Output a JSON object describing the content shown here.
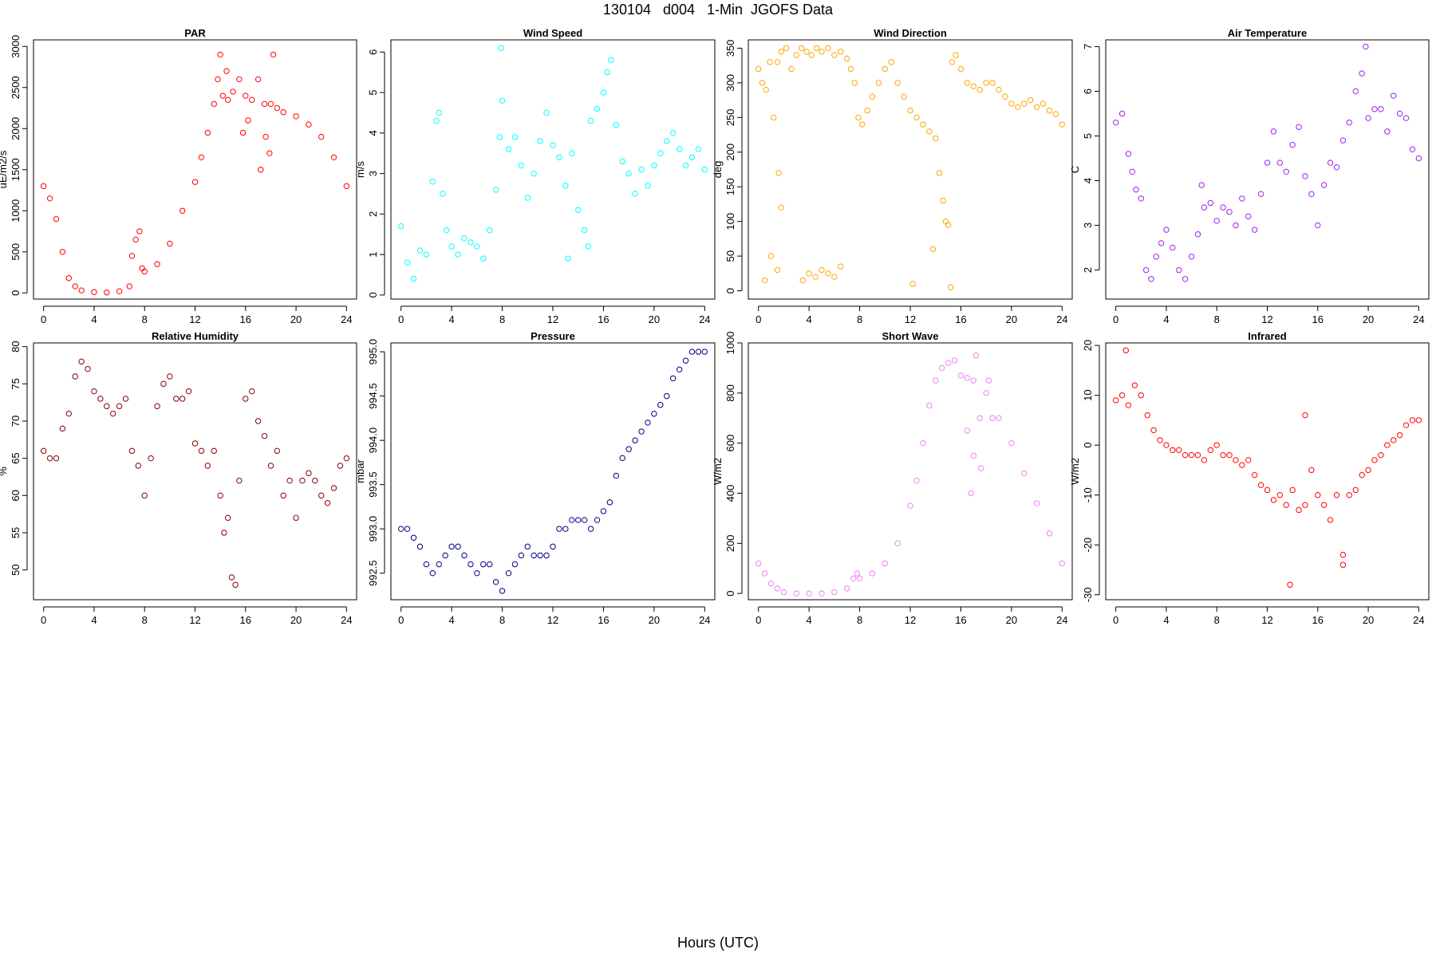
{
  "page": {
    "title": "130104   d004   1-Min  JGOFS Data",
    "xlabel": "Hours (UTC)"
  },
  "chart_data": [
    {
      "type": "scatter",
      "title": "PAR",
      "ylabel": "uE/m2/s",
      "color": "#ff0000",
      "xlim": [
        -0.8,
        24.8
      ],
      "ylim": [
        -75,
        3080
      ],
      "xticks": [
        0,
        4,
        8,
        12,
        16,
        20,
        24
      ],
      "yticks": [
        0,
        500,
        1000,
        1500,
        2000,
        2500,
        3000
      ],
      "x": [
        0,
        0.5,
        1,
        1.5,
        2,
        2.5,
        3,
        4,
        5,
        6,
        6.8,
        7,
        7.3,
        7.6,
        7.8,
        8,
        9,
        10,
        11,
        12,
        12.5,
        13,
        13.5,
        13.8,
        14.2,
        14.6,
        15,
        15.5,
        16,
        16.5,
        17,
        17.5,
        18,
        18.5,
        19,
        20,
        21,
        22,
        23,
        24,
        14.0,
        14.5,
        16.2,
        17.2,
        17.6,
        17.9,
        18.2,
        15.8
      ],
      "y": [
        1300,
        1150,
        900,
        500,
        180,
        80,
        30,
        10,
        5,
        20,
        80,
        450,
        650,
        750,
        300,
        260,
        350,
        600,
        1000,
        1350,
        1650,
        1950,
        2300,
        2600,
        2400,
        2350,
        2450,
        2600,
        2400,
        2350,
        2600,
        2300,
        2300,
        2250,
        2200,
        2150,
        2050,
        1900,
        1650,
        1300,
        2900,
        2700,
        2100,
        1500,
        1900,
        1700,
        2900,
        1950
      ]
    },
    {
      "type": "scatter",
      "title": "Wind Speed",
      "ylabel": "m/s",
      "color": "#00ffff",
      "xlim": [
        -0.8,
        24.8
      ],
      "ylim": [
        -0.1,
        6.3
      ],
      "xticks": [
        0,
        4,
        8,
        12,
        16,
        20,
        24
      ],
      "yticks": [
        0,
        1,
        2,
        3,
        4,
        5,
        6
      ],
      "x": [
        0,
        0.5,
        1,
        1.5,
        2,
        2.5,
        2.8,
        3,
        3.3,
        3.6,
        4,
        4.5,
        5,
        5.5,
        6,
        6.5,
        7,
        7.5,
        7.8,
        8,
        8.5,
        9,
        9.5,
        10,
        10.5,
        11,
        11.5,
        12,
        12.5,
        13,
        13.5,
        14,
        14.5,
        15,
        15.5,
        16,
        16.3,
        16.6,
        17,
        17.5,
        18,
        18.5,
        19,
        19.5,
        20,
        20.5,
        21,
        21.5,
        22,
        22.5,
        23,
        23.5,
        24,
        7.9,
        13.2,
        14.8
      ],
      "y": [
        1.7,
        0.8,
        0.4,
        1.1,
        1.0,
        2.8,
        4.3,
        4.5,
        2.5,
        1.6,
        1.2,
        1.0,
        1.4,
        1.3,
        1.2,
        0.9,
        1.6,
        2.6,
        3.9,
        4.8,
        3.6,
        3.9,
        3.2,
        2.4,
        3.0,
        3.8,
        4.5,
        3.7,
        3.4,
        2.7,
        3.5,
        2.1,
        1.6,
        4.3,
        4.6,
        5.0,
        5.5,
        5.8,
        4.2,
        3.3,
        3.0,
        2.5,
        3.1,
        2.7,
        3.2,
        3.5,
        3.8,
        4.0,
        3.6,
        3.2,
        3.4,
        3.6,
        3.1,
        6.1,
        0.9,
        1.2
      ]
    },
    {
      "type": "scatter",
      "title": "Wind Direction",
      "ylabel": "deg",
      "color": "#ffa500",
      "xlim": [
        -0.8,
        24.8
      ],
      "ylim": [
        -12,
        362
      ],
      "xticks": [
        0,
        4,
        8,
        12,
        16,
        20,
        24
      ],
      "yticks": [
        0,
        50,
        100,
        150,
        200,
        250,
        300,
        350
      ],
      "x": [
        0,
        0.3,
        0.6,
        0.9,
        1.2,
        1.5,
        1.8,
        2.2,
        2.6,
        3,
        3.4,
        3.8,
        4.2,
        4.6,
        5,
        5.5,
        6,
        6.5,
        7,
        7.3,
        7.6,
        7.9,
        8.2,
        8.6,
        9,
        9.5,
        10,
        10.5,
        11,
        11.5,
        12,
        12.5,
        13,
        13.5,
        14,
        14.3,
        14.6,
        14.8,
        15,
        15.3,
        15.6,
        16,
        16.5,
        17,
        17.5,
        18,
        18.5,
        19,
        19.5,
        20,
        20.5,
        21,
        21.5,
        22,
        22.5,
        23,
        23.5,
        24,
        0.5,
        1.0,
        1.5,
        1.8,
        3.5,
        4,
        4.5,
        5,
        5.5,
        6,
        6.5,
        12.2,
        13.8,
        15.2,
        1.6
      ],
      "y": [
        320,
        300,
        290,
        330,
        250,
        330,
        345,
        350,
        320,
        340,
        350,
        345,
        340,
        350,
        345,
        350,
        340,
        345,
        335,
        320,
        300,
        250,
        240,
        260,
        280,
        300,
        320,
        330,
        300,
        280,
        260,
        250,
        240,
        230,
        220,
        170,
        130,
        100,
        95,
        330,
        340,
        320,
        300,
        295,
        290,
        300,
        300,
        290,
        280,
        270,
        265,
        270,
        275,
        265,
        270,
        260,
        255,
        240,
        15,
        50,
        30,
        120,
        15,
        25,
        20,
        30,
        25,
        20,
        35,
        10,
        60,
        5,
        170
      ]
    },
    {
      "type": "scatter",
      "title": "Air Temperature",
      "ylabel": "C",
      "color": "#a020f0",
      "xlim": [
        -0.8,
        24.8
      ],
      "ylim": [
        1.35,
        7.15
      ],
      "xticks": [
        0,
        4,
        8,
        12,
        16,
        20,
        24
      ],
      "yticks": [
        2,
        3,
        4,
        5,
        6,
        7
      ],
      "x": [
        0,
        0.5,
        1,
        1.3,
        1.6,
        2,
        2.4,
        2.8,
        3.2,
        3.6,
        4,
        4.5,
        5,
        5.5,
        6,
        6.5,
        7,
        7.5,
        8,
        8.5,
        9,
        9.5,
        10,
        10.5,
        11,
        11.5,
        12,
        12.5,
        13,
        13.5,
        14,
        14.5,
        15,
        15.5,
        16,
        16.5,
        17,
        17.5,
        18,
        18.5,
        19,
        19.5,
        20,
        20.5,
        21,
        21.5,
        22,
        22.5,
        23,
        23.5,
        24,
        19.8,
        6.8
      ],
      "y": [
        5.3,
        5.5,
        4.6,
        4.2,
        3.8,
        3.6,
        2.0,
        1.8,
        2.3,
        2.6,
        2.9,
        2.5,
        2.0,
        1.8,
        2.3,
        2.8,
        3.4,
        3.5,
        3.1,
        3.4,
        3.3,
        3.0,
        3.6,
        3.2,
        2.9,
        3.7,
        4.4,
        5.1,
        4.4,
        4.2,
        4.8,
        5.2,
        4.1,
        3.7,
        3.0,
        3.9,
        4.4,
        4.3,
        4.9,
        5.3,
        6.0,
        6.4,
        5.4,
        5.6,
        5.6,
        5.1,
        5.9,
        5.5,
        5.4,
        4.7,
        4.5,
        7.0,
        3.9
      ]
    },
    {
      "type": "scatter",
      "title": "Relative Humidity",
      "ylabel": "%",
      "color": "#8b0000",
      "xlim": [
        -0.8,
        24.8
      ],
      "ylim": [
        46,
        80.5
      ],
      "xticks": [
        0,
        4,
        8,
        12,
        16,
        20,
        24
      ],
      "yticks": [
        50,
        55,
        60,
        65,
        70,
        75,
        80
      ],
      "x": [
        0,
        0.5,
        1,
        1.5,
        2,
        2.5,
        3,
        3.5,
        4,
        4.5,
        5,
        5.5,
        6,
        6.5,
        7,
        7.5,
        8,
        8.5,
        9,
        9.5,
        10,
        10.5,
        11,
        11.5,
        12,
        12.5,
        13,
        13.5,
        14,
        14.3,
        14.6,
        14.9,
        15.2,
        15.5,
        16,
        16.5,
        17,
        17.5,
        18,
        18.5,
        19,
        19.5,
        20,
        20.5,
        21,
        21.5,
        22,
        22.5,
        23,
        23.5,
        24
      ],
      "y": [
        66,
        65,
        65,
        69,
        71,
        76,
        78,
        77,
        74,
        73,
        72,
        71,
        72,
        73,
        66,
        64,
        60,
        65,
        72,
        75,
        76,
        73,
        73,
        74,
        67,
        66,
        64,
        66,
        60,
        55,
        57,
        49,
        48,
        62,
        73,
        74,
        70,
        68,
        64,
        66,
        60,
        62,
        57,
        62,
        63,
        62,
        60,
        59,
        61,
        64,
        65
      ]
    },
    {
      "type": "scatter",
      "title": "Pressure",
      "ylabel": "mbar",
      "color": "#00008b",
      "xlim": [
        -0.8,
        24.8
      ],
      "ylim": [
        992.2,
        995.1
      ],
      "xticks": [
        0,
        4,
        8,
        12,
        16,
        20,
        24
      ],
      "yticks": [
        992.5,
        993.0,
        993.5,
        994.0,
        994.5,
        995.0
      ],
      "x": [
        0,
        0.5,
        1,
        1.5,
        2,
        2.5,
        3,
        3.5,
        4,
        4.5,
        5,
        5.5,
        6,
        6.5,
        7,
        7.5,
        8,
        8.5,
        9,
        9.5,
        10,
        10.5,
        11,
        11.5,
        12,
        12.5,
        13,
        13.5,
        14,
        14.5,
        15,
        15.5,
        16,
        16.5,
        17,
        17.5,
        18,
        18.5,
        19,
        19.5,
        20,
        20.5,
        21,
        21.5,
        22,
        22.5,
        23,
        23.5,
        24
      ],
      "y": [
        993.0,
        993.0,
        992.9,
        992.8,
        992.6,
        992.5,
        992.6,
        992.7,
        992.8,
        992.8,
        992.7,
        992.6,
        992.5,
        992.6,
        992.6,
        992.4,
        992.3,
        992.5,
        992.6,
        992.7,
        992.8,
        992.7,
        992.7,
        992.7,
        992.8,
        993.0,
        993.0,
        993.1,
        993.1,
        993.1,
        993.0,
        993.1,
        993.2,
        993.3,
        993.6,
        993.8,
        993.9,
        994.0,
        994.1,
        994.2,
        994.3,
        994.4,
        994.5,
        994.7,
        994.8,
        994.9,
        995.0,
        995.0,
        995.0
      ]
    },
    {
      "type": "scatter",
      "title": "Short Wave",
      "ylabel": "W/m2",
      "color": "#ee82ee",
      "xlim": [
        -0.8,
        24.8
      ],
      "ylim": [
        -25,
        1000
      ],
      "xticks": [
        0,
        4,
        8,
        12,
        16,
        20,
        24
      ],
      "yticks": [
        0,
        200,
        400,
        600,
        800,
        1000
      ],
      "x": [
        0,
        0.5,
        1,
        1.5,
        2,
        3,
        4,
        5,
        6,
        7,
        7.5,
        7.8,
        8,
        9,
        10,
        11,
        12,
        12.5,
        13,
        13.5,
        14,
        14.5,
        15,
        15.5,
        16,
        16.5,
        17,
        17.5,
        18,
        18.5,
        19,
        20,
        21,
        22,
        23,
        24,
        16.8,
        17.2,
        17.6,
        18.2,
        16.5,
        17.0
      ],
      "y": [
        120,
        80,
        40,
        20,
        5,
        0,
        0,
        0,
        5,
        20,
        60,
        80,
        60,
        80,
        120,
        200,
        350,
        450,
        600,
        750,
        850,
        900,
        920,
        930,
        870,
        860,
        850,
        700,
        800,
        700,
        700,
        600,
        480,
        360,
        240,
        120,
        400,
        950,
        500,
        850,
        650,
        550
      ]
    },
    {
      "type": "scatter",
      "title": "Infrared",
      "ylabel": "W/m2",
      "color": "#ff0000",
      "xlim": [
        -0.8,
        24.8
      ],
      "ylim": [
        -31,
        20.5
      ],
      "xticks": [
        0,
        4,
        8,
        12,
        16,
        20,
        24
      ],
      "yticks": [
        -30,
        -20,
        -10,
        0,
        10,
        20
      ],
      "x": [
        0,
        0.5,
        1,
        1.5,
        2,
        2.5,
        3,
        3.5,
        4,
        4.5,
        5,
        5.5,
        6,
        6.5,
        7,
        7.5,
        8,
        8.5,
        9,
        9.5,
        10,
        10.5,
        11,
        11.5,
        12,
        12.5,
        13,
        13.5,
        14,
        14.5,
        15,
        15.5,
        16,
        16.5,
        17,
        17.5,
        18,
        18.5,
        19,
        19.5,
        20,
        20.5,
        21,
        21.5,
        22,
        22.5,
        23,
        23.5,
        24,
        0.8,
        13.8,
        15.0,
        18.0
      ],
      "y": [
        9,
        10,
        8,
        12,
        10,
        6,
        3,
        1,
        0,
        -1,
        -1,
        -2,
        -2,
        -2,
        -3,
        -1,
        0,
        -2,
        -2,
        -3,
        -4,
        -3,
        -6,
        -8,
        -9,
        -11,
        -10,
        -12,
        -9,
        -13,
        -12,
        -5,
        -10,
        -12,
        -15,
        -10,
        -22,
        -10,
        -9,
        -6,
        -5,
        -3,
        -2,
        0,
        1,
        2,
        4,
        5,
        5,
        19,
        -28,
        6,
        -24
      ]
    }
  ]
}
